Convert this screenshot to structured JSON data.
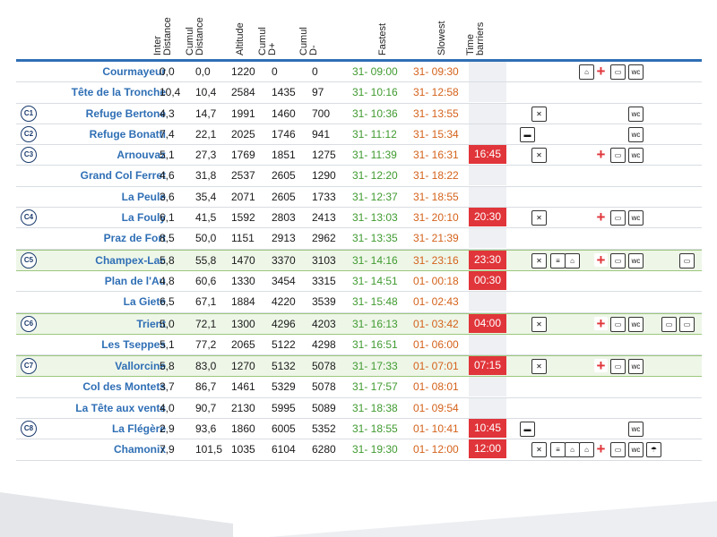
{
  "headers": {
    "inter": [
      "Inter",
      "Distance"
    ],
    "cumul_dist": [
      "Cumul",
      "Distance"
    ],
    "altitude": [
      "Altitude"
    ],
    "cumul_dp": [
      "Cumul",
      "D+"
    ],
    "cumul_dm": [
      "Cumul",
      "D-"
    ],
    "fastest": [
      "Fastest"
    ],
    "slowest": [
      "Slowest"
    ],
    "barriers": [
      "Time",
      "barriers"
    ]
  },
  "rows": [
    {
      "name": "Courmayeur",
      "cp": "",
      "inter": "0,0",
      "cumul": "0,0",
      "alt": "1220",
      "dp": "0",
      "dm": "0",
      "fast": "31- 09:00",
      "slow": "31- 09:30",
      "barrier": "",
      "green": false,
      "icons": [
        "lock",
        "cross",
        "bus",
        "wc"
      ]
    },
    {
      "name": "Tête de la Tronche",
      "cp": "",
      "inter": "10,4",
      "cumul": "10,4",
      "alt": "2584",
      "dp": "1435",
      "dm": "97",
      "fast": "31- 10:16",
      "slow": "31- 12:58",
      "barrier": "",
      "green": false,
      "icons": []
    },
    {
      "name": "Refuge Bertone",
      "cp": "C1",
      "inter": "4,3",
      "cumul": "14,7",
      "alt": "1991",
      "dp": "1460",
      "dm": "700",
      "fast": "31- 10:36",
      "slow": "31- 13:55",
      "barrier": "",
      "green": false,
      "icons": [
        "food",
        "wc"
      ]
    },
    {
      "name": "Refuge Bonatti",
      "cp": "C2",
      "inter": "7,4",
      "cumul": "22,1",
      "alt": "2025",
      "dp": "1746",
      "dm": "941",
      "fast": "31- 11:12",
      "slow": "31- 15:34",
      "barrier": "",
      "green": false,
      "icons": [
        "cup",
        "wc"
      ]
    },
    {
      "name": "Arnouvaz",
      "cp": "C3",
      "inter": "5,1",
      "cumul": "27,3",
      "alt": "1769",
      "dp": "1851",
      "dm": "1275",
      "fast": "31- 11:39",
      "slow": "31- 16:31",
      "barrier": "16:45",
      "green": false,
      "icons": [
        "food",
        "cross",
        "bus",
        "wc"
      ]
    },
    {
      "name": "Grand Col Ferret",
      "cp": "",
      "inter": "4,6",
      "cumul": "31,8",
      "alt": "2537",
      "dp": "2605",
      "dm": "1290",
      "fast": "31- 12:20",
      "slow": "31- 18:22",
      "barrier": "",
      "green": false,
      "icons": []
    },
    {
      "name": "La Peule",
      "cp": "",
      "inter": "3,6",
      "cumul": "35,4",
      "alt": "2071",
      "dp": "2605",
      "dm": "1733",
      "fast": "31- 12:37",
      "slow": "31- 18:55",
      "barrier": "",
      "green": false,
      "icons": []
    },
    {
      "name": "La Fouly",
      "cp": "C4",
      "inter": "6,1",
      "cumul": "41,5",
      "alt": "1592",
      "dp": "2803",
      "dm": "2413",
      "fast": "31- 13:03",
      "slow": "31- 20:10",
      "barrier": "20:30",
      "green": false,
      "icons": [
        "food",
        "cross",
        "bus",
        "wc"
      ]
    },
    {
      "name": "Praz de Fort",
      "cp": "",
      "inter": "8,5",
      "cumul": "50,0",
      "alt": "1151",
      "dp": "2913",
      "dm": "2962",
      "fast": "31- 13:35",
      "slow": "31- 21:39",
      "barrier": "",
      "green": false,
      "icons": []
    },
    {
      "name": "Champex-Lac",
      "cp": "C5",
      "inter": "5,8",
      "cumul": "55,8",
      "alt": "1470",
      "dp": "3370",
      "dm": "3103",
      "fast": "31- 14:16",
      "slow": "31- 23:16",
      "barrier": "23:30",
      "green": true,
      "icons": [
        "food",
        "bed",
        "tent",
        "cross",
        "bus",
        "wc",
        "bag"
      ]
    },
    {
      "name": "Plan de l'Au",
      "cp": "",
      "inter": "4,8",
      "cumul": "60,6",
      "alt": "1330",
      "dp": "3454",
      "dm": "3315",
      "fast": "31- 14:51",
      "slow": "01- 00:18",
      "barrier": "00:30",
      "green": false,
      "icons": []
    },
    {
      "name": "La Giete",
      "cp": "",
      "inter": "6,5",
      "cumul": "67,1",
      "alt": "1884",
      "dp": "4220",
      "dm": "3539",
      "fast": "31- 15:48",
      "slow": "01- 02:43",
      "barrier": "",
      "green": false,
      "icons": []
    },
    {
      "name": "Trient",
      "cp": "C6",
      "inter": "5,0",
      "cumul": "72,1",
      "alt": "1300",
      "dp": "4296",
      "dm": "4203",
      "fast": "31- 16:13",
      "slow": "01- 03:42",
      "barrier": "04:00",
      "green": true,
      "icons": [
        "food",
        "cross",
        "bus",
        "wc",
        "pole",
        "bag"
      ]
    },
    {
      "name": "Les Tseppes",
      "cp": "",
      "inter": "5,1",
      "cumul": "77,2",
      "alt": "2065",
      "dp": "5122",
      "dm": "4298",
      "fast": "31- 16:51",
      "slow": "01- 06:00",
      "barrier": "",
      "green": false,
      "icons": []
    },
    {
      "name": "Vallorcine",
      "cp": "C7",
      "inter": "5,8",
      "cumul": "83,0",
      "alt": "1270",
      "dp": "5132",
      "dm": "5078",
      "fast": "31- 17:33",
      "slow": "01- 07:01",
      "barrier": "07:15",
      "green": true,
      "icons": [
        "food",
        "cross",
        "bus",
        "wc"
      ]
    },
    {
      "name": "Col des Montets",
      "cp": "",
      "inter": "3,7",
      "cumul": "86,7",
      "alt": "1461",
      "dp": "5329",
      "dm": "5078",
      "fast": "31- 17:57",
      "slow": "01- 08:01",
      "barrier": "",
      "green": false,
      "icons": []
    },
    {
      "name": "La Tête aux vents",
      "cp": "",
      "inter": "4,0",
      "cumul": "90,7",
      "alt": "2130",
      "dp": "5995",
      "dm": "5089",
      "fast": "31- 18:38",
      "slow": "01- 09:54",
      "barrier": "",
      "green": false,
      "icons": []
    },
    {
      "name": "La Flégère",
      "cp": "C8",
      "inter": "2,9",
      "cumul": "93,6",
      "alt": "1860",
      "dp": "6005",
      "dm": "5352",
      "fast": "31- 18:55",
      "slow": "01- 10:41",
      "barrier": "10:45",
      "green": false,
      "icons": [
        "cup",
        "wc"
      ]
    },
    {
      "name": "Chamonix",
      "cp": "",
      "inter": "7,9",
      "cumul": "101,5",
      "alt": "1035",
      "dp": "6104",
      "dm": "6280",
      "fast": "31- 19:30",
      "slow": "01- 12:00",
      "barrier": "12:00",
      "green": false,
      "icons": [
        "food",
        "bed",
        "tent",
        "lock",
        "cross",
        "bus",
        "wc",
        "shower"
      ]
    }
  ],
  "icon_glyphs": {
    "food": "✕",
    "cup": "▬",
    "wc": "wc",
    "bus": "▭",
    "cross": "+",
    "lock": "⌂",
    "bed": "≡",
    "tent": "⌂",
    "bag": "▭",
    "pole": "▭",
    "shower": "☂"
  },
  "colors": {
    "accent": "#2f6fb5",
    "fast": "#3f9a2f",
    "slow": "#d4621b",
    "barrier": "#e0353a",
    "green_row": "#eef6e8"
  }
}
